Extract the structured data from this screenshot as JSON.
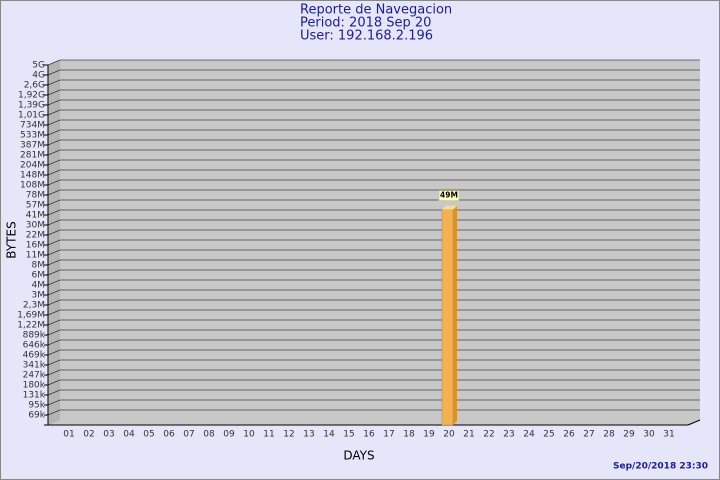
{
  "chart_data": {
    "type": "bar",
    "title": "Reporte de Navegacion",
    "subtitle": "Period: 2018 Sep 20",
    "user": "User: 192.168.2.196",
    "x_label": "DAYS",
    "y_label": "BYTES",
    "footer": "Sep/20/2018 23:30",
    "categories": [
      "01",
      "02",
      "03",
      "04",
      "05",
      "06",
      "07",
      "08",
      "09",
      "10",
      "11",
      "12",
      "13",
      "14",
      "15",
      "16",
      "17",
      "18",
      "19",
      "20",
      "21",
      "22",
      "23",
      "24",
      "25",
      "26",
      "27",
      "28",
      "29",
      "30",
      "31"
    ],
    "values": [
      null,
      null,
      null,
      null,
      null,
      null,
      null,
      null,
      null,
      null,
      null,
      null,
      null,
      null,
      null,
      null,
      null,
      null,
      null,
      49000000,
      null,
      null,
      null,
      null,
      null,
      null,
      null,
      null,
      null,
      null,
      null
    ],
    "value_labels": [
      null,
      null,
      null,
      null,
      null,
      null,
      null,
      null,
      null,
      null,
      null,
      null,
      null,
      null,
      null,
      null,
      null,
      null,
      null,
      "49M",
      null,
      null,
      null,
      null,
      null,
      null,
      null,
      null,
      null,
      null,
      null
    ],
    "color": "#f2b252",
    "log_scale": true,
    "grid": true,
    "ylim": [
      50000,
      5000000000
    ],
    "yticks": [
      {
        "value": 5000000000,
        "label": "5G"
      },
      {
        "value": 4000000000,
        "label": "4G"
      },
      {
        "value": 2600000000,
        "label": "2,6G"
      },
      {
        "value": 1920000000,
        "label": "1,92G"
      },
      {
        "value": 1390000000,
        "label": "1,39G"
      },
      {
        "value": 1010000000,
        "label": "1,01G"
      },
      {
        "value": 734000000,
        "label": "734M"
      },
      {
        "value": 533000000,
        "label": "533M"
      },
      {
        "value": 387000000,
        "label": "387M"
      },
      {
        "value": 281000000,
        "label": "281M"
      },
      {
        "value": 204000000,
        "label": "204M"
      },
      {
        "value": 148000000,
        "label": "148M"
      },
      {
        "value": 108000000,
        "label": "108M"
      },
      {
        "value": 78000000,
        "label": "78M"
      },
      {
        "value": 57000000,
        "label": "57M"
      },
      {
        "value": 41000000,
        "label": "41M"
      },
      {
        "value": 30000000,
        "label": "30M"
      },
      {
        "value": 22000000,
        "label": "22M"
      },
      {
        "value": 16000000,
        "label": "16M"
      },
      {
        "value": 11000000,
        "label": "11M"
      },
      {
        "value": 8000000,
        "label": "8M"
      },
      {
        "value": 6000000,
        "label": "6M"
      },
      {
        "value": 4000000,
        "label": "4M"
      },
      {
        "value": 3000000,
        "label": "3M"
      },
      {
        "value": 2300000,
        "label": "2,3M"
      },
      {
        "value": 1690000,
        "label": "1,69M"
      },
      {
        "value": 1220000,
        "label": "1,22M"
      },
      {
        "value": 889000,
        "label": "889k"
      },
      {
        "value": 646000,
        "label": "646k"
      },
      {
        "value": 469000,
        "label": "469k"
      },
      {
        "value": 341000,
        "label": "341k"
      },
      {
        "value": 247000,
        "label": "247k"
      },
      {
        "value": 180000,
        "label": "180k"
      },
      {
        "value": 131000,
        "label": "131k"
      },
      {
        "value": 95000,
        "label": "95k"
      },
      {
        "value": 69000,
        "label": "69k"
      }
    ]
  }
}
